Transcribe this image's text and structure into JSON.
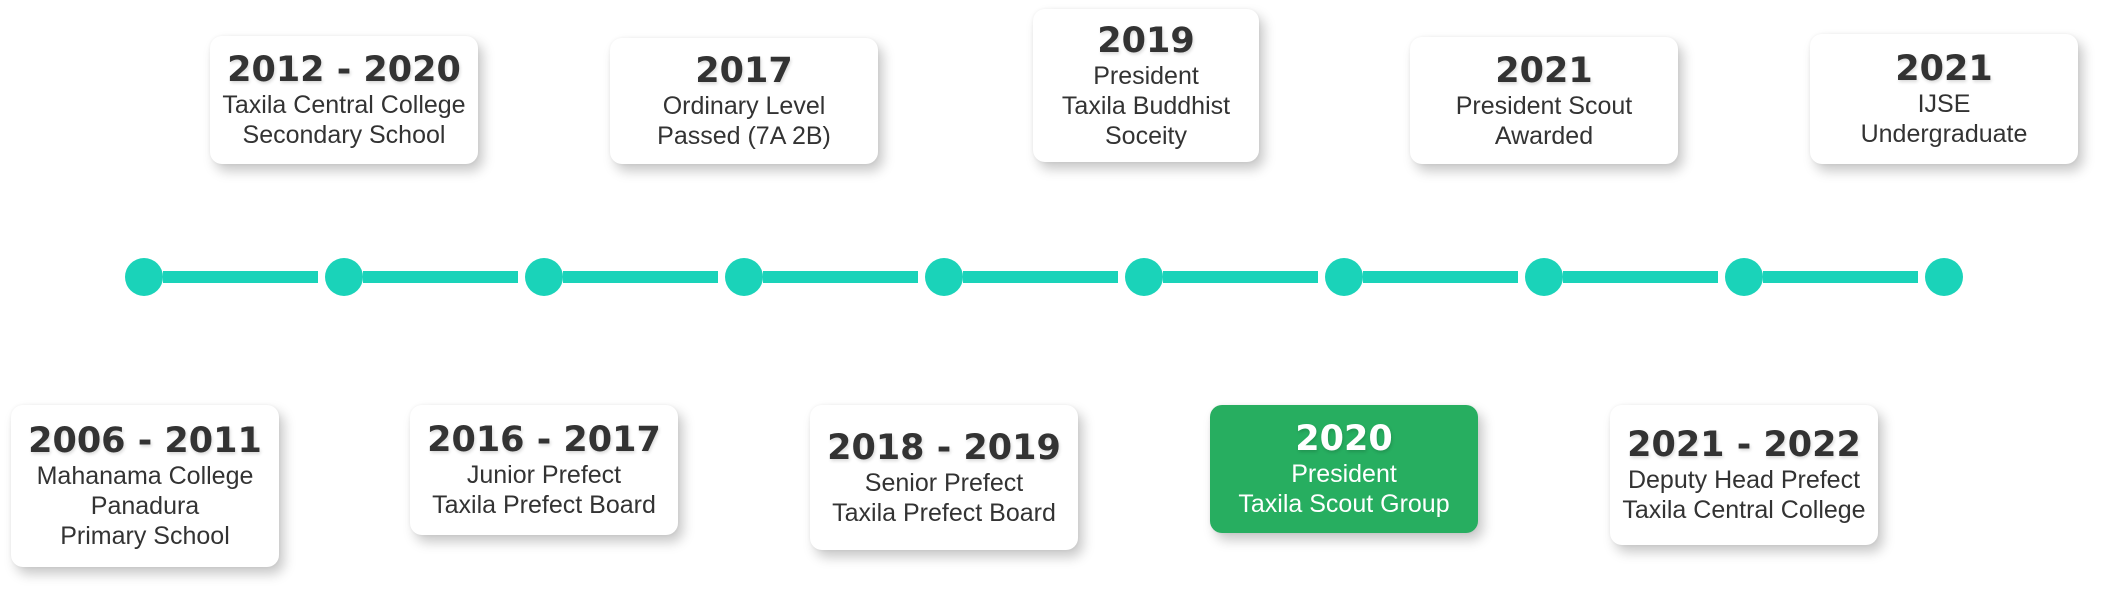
{
  "timeline": {
    "accent_color": "#1ad3b9",
    "highlight_color": "#27ae60",
    "top_cards": [
      {
        "year": "2012 - 2020",
        "lines": [
          "Taxila Central College",
          "Secondary School"
        ]
      },
      {
        "year": "2017",
        "lines": [
          "Ordinary Level",
          "Passed (7A 2B)"
        ]
      },
      {
        "year": "2019",
        "lines": [
          "President",
          "Taxila Buddhist",
          "Soceity"
        ]
      },
      {
        "year": "2021",
        "lines": [
          "President Scout",
          "Awarded"
        ]
      },
      {
        "year": "2021",
        "lines": [
          "IJSE",
          "Undergraduate"
        ]
      }
    ],
    "bottom_cards": [
      {
        "year": "2006 - 2011",
        "lines": [
          "Mahanama College",
          "Panadura",
          "Primary School"
        ]
      },
      {
        "year": "2016 - 2017",
        "lines": [
          "Junior Prefect",
          "Taxila Prefect Board"
        ]
      },
      {
        "year": "2018 - 2019",
        "lines": [
          "Senior Prefect",
          "Taxila Prefect Board"
        ]
      },
      {
        "year": "2020",
        "lines": [
          "President",
          "Taxila Scout Group"
        ],
        "highlighted": true
      },
      {
        "year": "2021 - 2022",
        "lines": [
          "Deputy Head Prefect",
          "Taxila Central College"
        ]
      }
    ]
  }
}
